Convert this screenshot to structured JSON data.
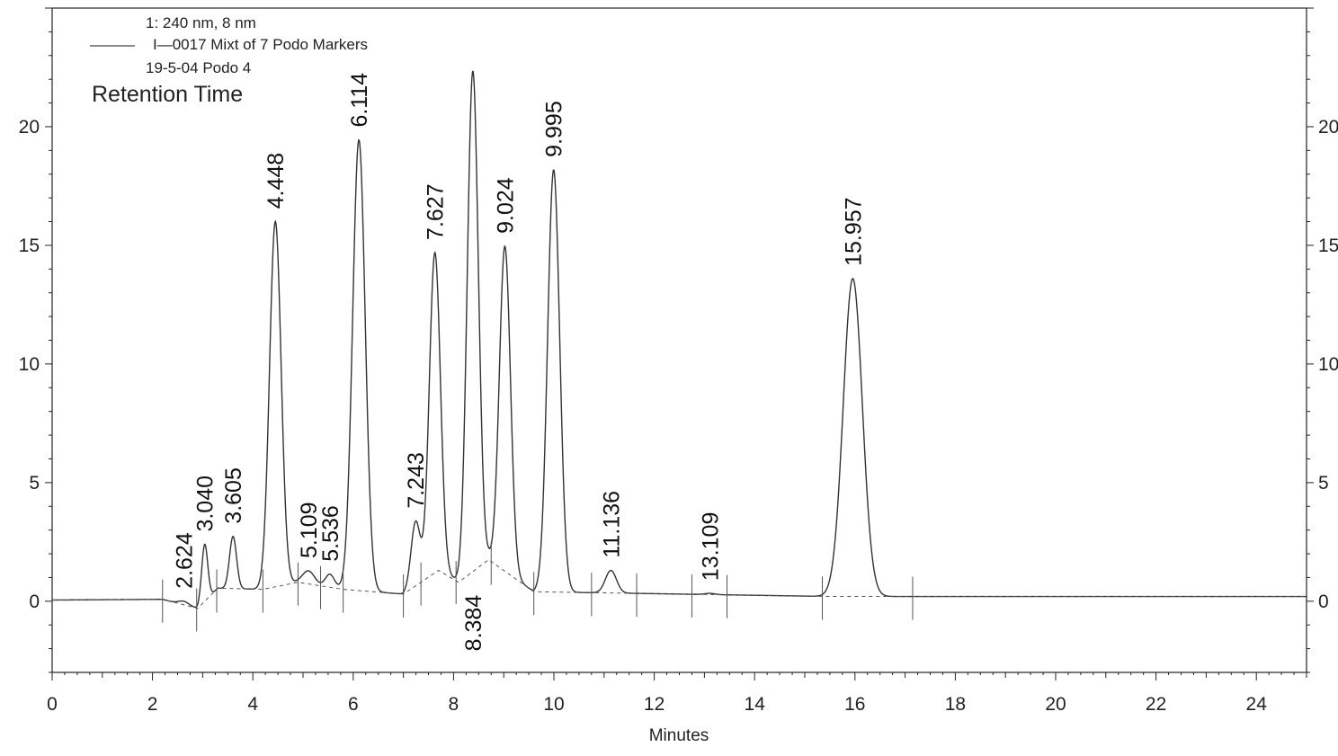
{
  "chart_data": {
    "type": "line",
    "legend": {
      "line1": "1: 240 nm, 8 nm",
      "line2": "I—0017  Mixt of 7 Podo Markers",
      "line3": "19-5-04 Podo 4"
    },
    "annotation_title": "Retention Time",
    "xlabel": "Minutes",
    "ylabel": "",
    "xlim": [
      0,
      25
    ],
    "ylim": [
      -3,
      25
    ],
    "x_ticks": [
      0,
      2,
      4,
      6,
      8,
      10,
      12,
      14,
      16,
      18,
      20,
      22,
      24
    ],
    "y_ticks": [
      0,
      5,
      10,
      15,
      20
    ],
    "baseline_points": [
      [
        0,
        0.05
      ],
      [
        2.2,
        0.08
      ],
      [
        2.9,
        -0.3
      ],
      [
        3.3,
        0.55
      ],
      [
        4.2,
        0.5
      ],
      [
        4.9,
        0.8
      ],
      [
        5.8,
        0.5
      ],
      [
        7.0,
        0.3
      ],
      [
        7.7,
        1.3
      ],
      [
        8.1,
        0.8
      ],
      [
        8.7,
        1.75
      ],
      [
        9.6,
        0.4
      ],
      [
        15.5,
        0.2
      ],
      [
        25,
        0.2
      ]
    ],
    "peaks": [
      {
        "label": "2.624",
        "rt": 2.624,
        "height": 0.15,
        "width": 0.1
      },
      {
        "label": "3.040",
        "rt": 3.04,
        "height": 2.4,
        "width": 0.06
      },
      {
        "label": "3.605",
        "rt": 3.605,
        "height": 2.2,
        "width": 0.07
      },
      {
        "label": "4.448",
        "rt": 4.448,
        "height": 15.4,
        "width": 0.115
      },
      {
        "label": "5.109",
        "rt": 5.109,
        "height": 0.55,
        "width": 0.12
      },
      {
        "label": "5.536",
        "rt": 5.536,
        "height": 0.55,
        "width": 0.09
      },
      {
        "label": "6.114",
        "rt": 6.114,
        "height": 19.0,
        "width": 0.125
      },
      {
        "label": "7.243",
        "rt": 7.243,
        "height": 2.7,
        "width": 0.09
      },
      {
        "label": "7.627",
        "rt": 7.627,
        "height": 13.5,
        "width": 0.11
      },
      {
        "label": "8.384",
        "rt": 8.384,
        "height": 21.1,
        "width": 0.11
      },
      {
        "label": "9.024",
        "rt": 9.024,
        "height": 13.7,
        "width": 0.11
      },
      {
        "label": "9.995",
        "rt": 9.995,
        "height": 17.8,
        "width": 0.12
      },
      {
        "label": "11.136",
        "rt": 11.136,
        "height": 0.95,
        "width": 0.11
      },
      {
        "label": "13.109",
        "rt": 13.109,
        "height": 0.05,
        "width": 0.1
      },
      {
        "label": "15.957",
        "rt": 15.957,
        "height": 13.4,
        "width": 0.19
      }
    ],
    "peak_label_placement": {
      "2.624": "above",
      "3.040": "above",
      "3.605": "above",
      "4.448": "above",
      "5.109": "above",
      "5.536": "above",
      "6.114": "above",
      "7.243": "above",
      "7.627": "above",
      "8.384": "below",
      "9.024": "above",
      "9.995": "above",
      "11.136": "above",
      "13.109": "above",
      "15.957": "above"
    },
    "integration_markers_rt": [
      2.2,
      2.88,
      3.28,
      4.2,
      4.9,
      5.35,
      5.8,
      7.0,
      7.35,
      8.05,
      8.75,
      9.6,
      10.75,
      11.65,
      12.75,
      13.45,
      15.35,
      17.15
    ],
    "grid": false,
    "colors": {
      "trace": "#333333",
      "axis": "#222222",
      "dashed": "#555555"
    }
  }
}
